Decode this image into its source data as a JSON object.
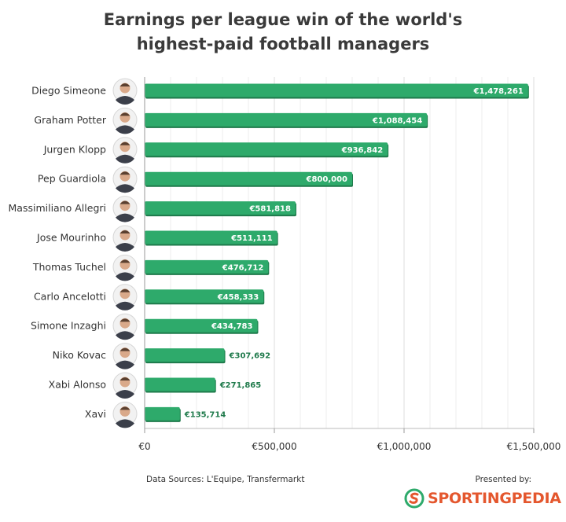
{
  "chart_data": {
    "type": "bar",
    "orientation": "horizontal",
    "title_lines": [
      "Earnings per league win of the world's",
      "highest-paid football managers"
    ],
    "categories": [
      "Diego Simeone",
      "Graham Potter",
      "Jurgen Klopp",
      "Pep Guardiola",
      "Massimiliano Allegri",
      "Jose Mourinho",
      "Thomas Tuchel",
      "Carlo Ancelotti",
      "Simone Inzaghi",
      "Niko Kovac",
      "Xabi Alonso",
      "Xavi"
    ],
    "values": [
      1478261,
      1088454,
      936842,
      800000,
      581818,
      511111,
      476712,
      458333,
      434783,
      307692,
      271865,
      135714
    ],
    "value_labels": [
      "€1,478,261",
      "€1,088,454",
      "€936,842",
      "€800,000",
      "€581,818",
      "€511,111",
      "€476,712",
      "€458,333",
      "€434,783",
      "€307,692",
      "€271,865",
      "€135,714"
    ],
    "xlim": [
      0,
      1500000
    ],
    "xticks": [
      0,
      500000,
      1000000,
      1500000
    ],
    "xtick_labels": [
      "€0",
      "€500,000",
      "€1,000,000",
      "€1,500,000"
    ],
    "xlabel": "",
    "ylabel": "",
    "grid": true,
    "bar_color": "#2eaa6b",
    "bar_color_dark": "#1f7a4b"
  },
  "footer": {
    "source": "Data Sources: L'Equipe, Transfermarkt",
    "presented_by": "Presented by:",
    "brand_part1": "SPORTING",
    "brand_part2": "PEDIA",
    "brand_color": "#e4572e"
  }
}
